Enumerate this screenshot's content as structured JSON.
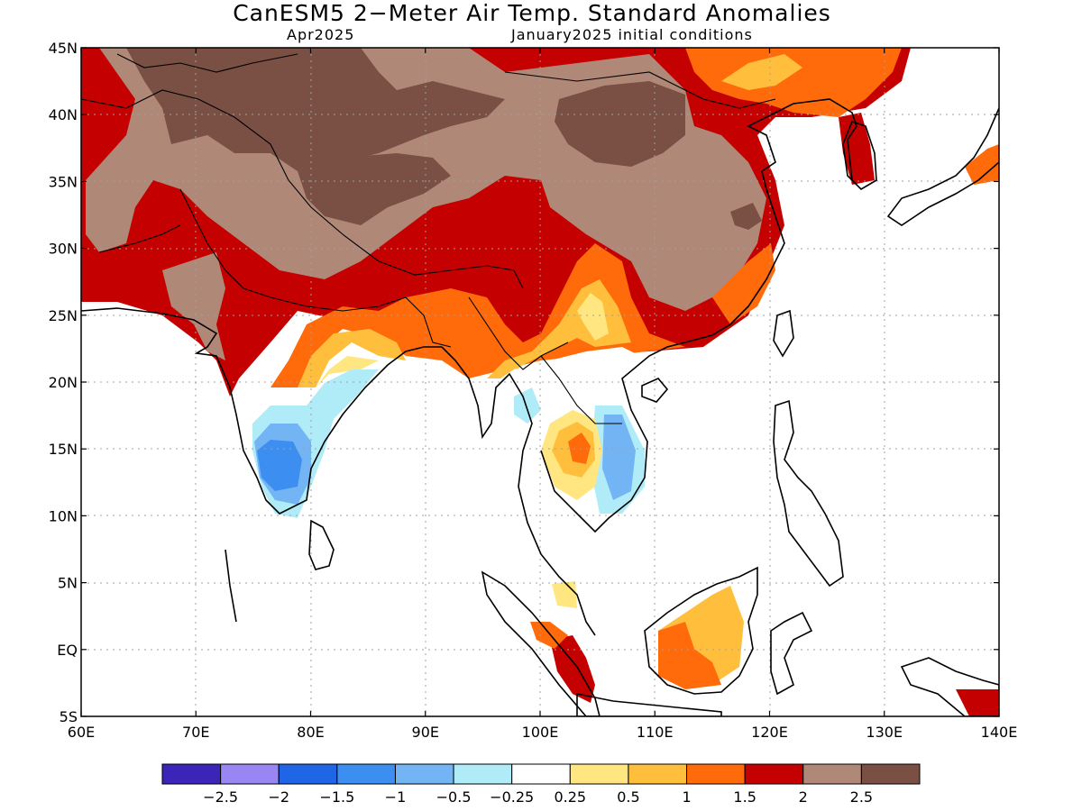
{
  "header": {
    "title": "CanESM5 2−Meter Air Temp. Standard Anomalies",
    "valid_month": "Apr2025",
    "init_conditions": "January2025 initial conditions"
  },
  "map": {
    "lon_range": [
      60,
      140
    ],
    "lat_range": [
      -5,
      45
    ],
    "lat_ticks": [
      {
        "value": 45,
        "label": "45N"
      },
      {
        "value": 40,
        "label": "40N"
      },
      {
        "value": 35,
        "label": "35N"
      },
      {
        "value": 30,
        "label": "30N"
      },
      {
        "value": 25,
        "label": "25N"
      },
      {
        "value": 20,
        "label": "20N"
      },
      {
        "value": 15,
        "label": "15N"
      },
      {
        "value": 10,
        "label": "10N"
      },
      {
        "value": 5,
        "label": "5N"
      },
      {
        "value": 0,
        "label": "EQ"
      },
      {
        "value": -5,
        "label": "5S"
      }
    ],
    "lon_ticks": [
      {
        "value": 60,
        "label": "60E"
      },
      {
        "value": 70,
        "label": "70E"
      },
      {
        "value": 80,
        "label": "80E"
      },
      {
        "value": 90,
        "label": "90E"
      },
      {
        "value": 100,
        "label": "100E"
      },
      {
        "value": 110,
        "label": "110E"
      },
      {
        "value": 120,
        "label": "120E"
      },
      {
        "value": 130,
        "label": "130E"
      },
      {
        "value": 140,
        "label": "140E"
      }
    ]
  },
  "legend": {
    "colors": [
      "#3a25b8",
      "#9a86f2",
      "#1f66e6",
      "#3c8ff0",
      "#73b4f5",
      "#b0ecf7",
      "#ffffff",
      "#ffe680",
      "#ffbf3c",
      "#ff6a0a",
      "#c40000",
      "#b08878",
      "#7a4f44"
    ],
    "labels": [
      "−2.5",
      "−2",
      "−1.5",
      "−1",
      "−0.5",
      "−0.25",
      "0.25",
      "0.5",
      "1",
      "1.5",
      "2",
      "2.5"
    ]
  }
}
